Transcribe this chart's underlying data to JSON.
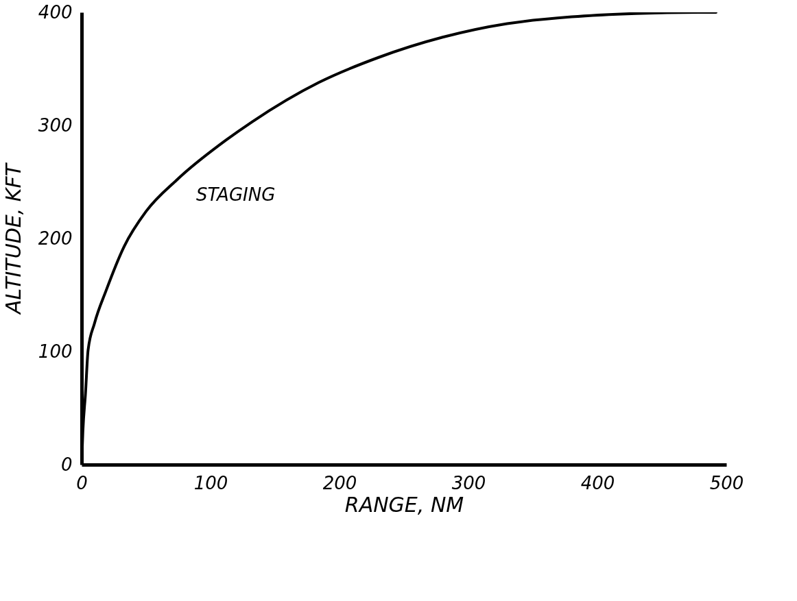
{
  "chart_data": {
    "type": "line",
    "xlabel": "RANGE, NM",
    "ylabel": "ALTITUDE, KFT",
    "x": [
      0,
      1,
      3,
      5,
      10,
      19,
      33,
      50,
      74,
      112,
      132,
      184,
      230,
      280,
      330,
      380,
      430,
      480,
      492
    ],
    "series": [
      {
        "color": "#000000",
        "values": [
          0,
          30,
          63,
          101,
          125,
          154,
          193,
          224,
          252,
          287,
          303,
          338,
          360,
          378,
          390,
          396,
          399,
          400,
          400
        ]
      }
    ],
    "xlim": [
      0,
      500
    ],
    "ylim": [
      0,
      400
    ],
    "xticks": [
      0,
      100,
      200,
      300,
      400,
      500
    ],
    "yticks": [
      0,
      100,
      200,
      300,
      400
    ],
    "annotations": [
      {
        "text": "STAGING",
        "x": 74,
        "y": 252
      }
    ]
  }
}
